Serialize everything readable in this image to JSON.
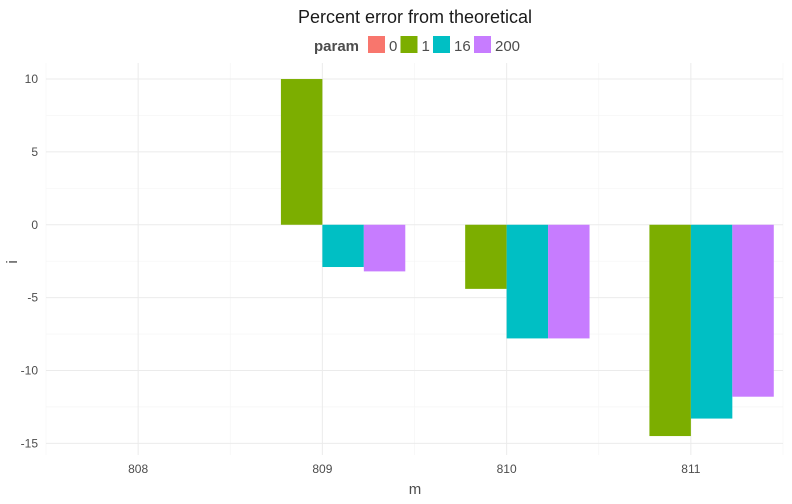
{
  "chart_data": {
    "type": "bar",
    "title": "Percent error from theoretical",
    "xlabel": "m",
    "ylabel": "i",
    "categories": [
      "808",
      "809",
      "810",
      "811"
    ],
    "legend": {
      "title": "param",
      "position": "top"
    },
    "series": [
      {
        "name": "0",
        "color": "#F8766D",
        "values": [
          null,
          null,
          null,
          null
        ]
      },
      {
        "name": "1",
        "color": "#7CAE00",
        "values": [
          null,
          10.0,
          -4.4,
          -14.5
        ]
      },
      {
        "name": "16",
        "color": "#00BFC4",
        "values": [
          null,
          -2.9,
          -7.8,
          -13.3
        ]
      },
      {
        "name": "200",
        "color": "#C77CFF",
        "values": [
          null,
          -3.2,
          -7.8,
          -11.8
        ]
      }
    ],
    "yticks": [
      -15,
      -10,
      -5,
      0,
      5,
      10
    ],
    "ylim": [
      -15.8,
      11.1
    ],
    "grid": true
  }
}
